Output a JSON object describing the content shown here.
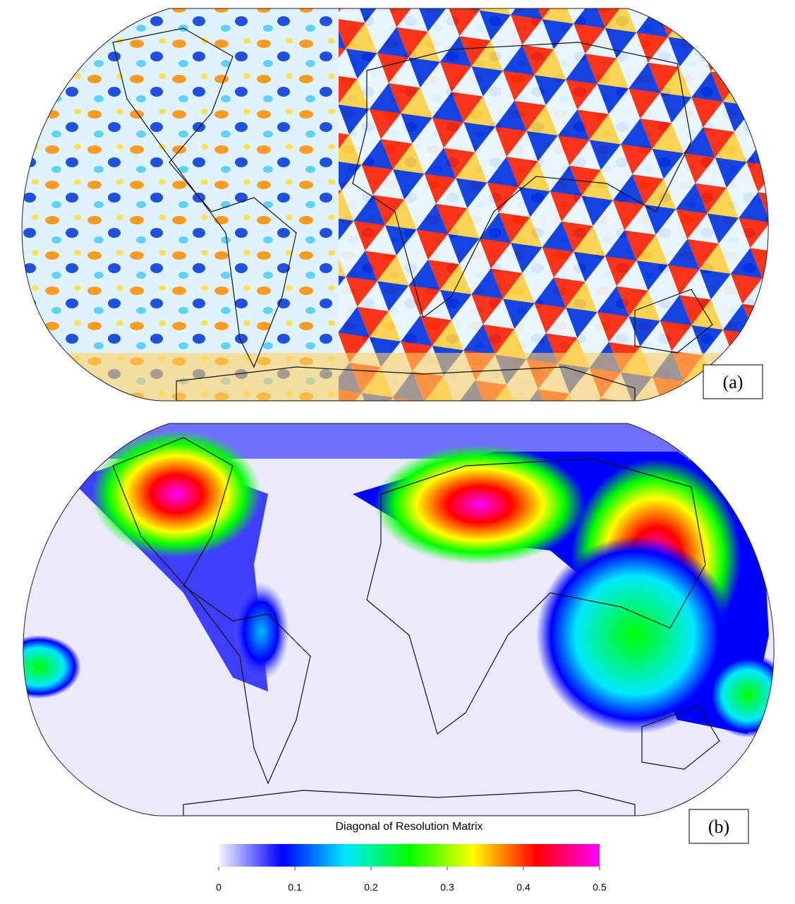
{
  "panels": [
    {
      "label": "(a)"
    },
    {
      "label": "(b)"
    }
  ],
  "colorbar": {
    "title": "Diagonal of Resolution Matrix",
    "lim": [
      0,
      0.5
    ],
    "ticks": [
      0,
      0.1,
      0.2,
      0.3,
      0.4,
      0.5
    ],
    "colors": [
      "#f6f6ff",
      "#0000ff",
      "#00e8ff",
      "#00ff00",
      "#ffff00",
      "#ff0000",
      "#ff00ff"
    ]
  }
}
